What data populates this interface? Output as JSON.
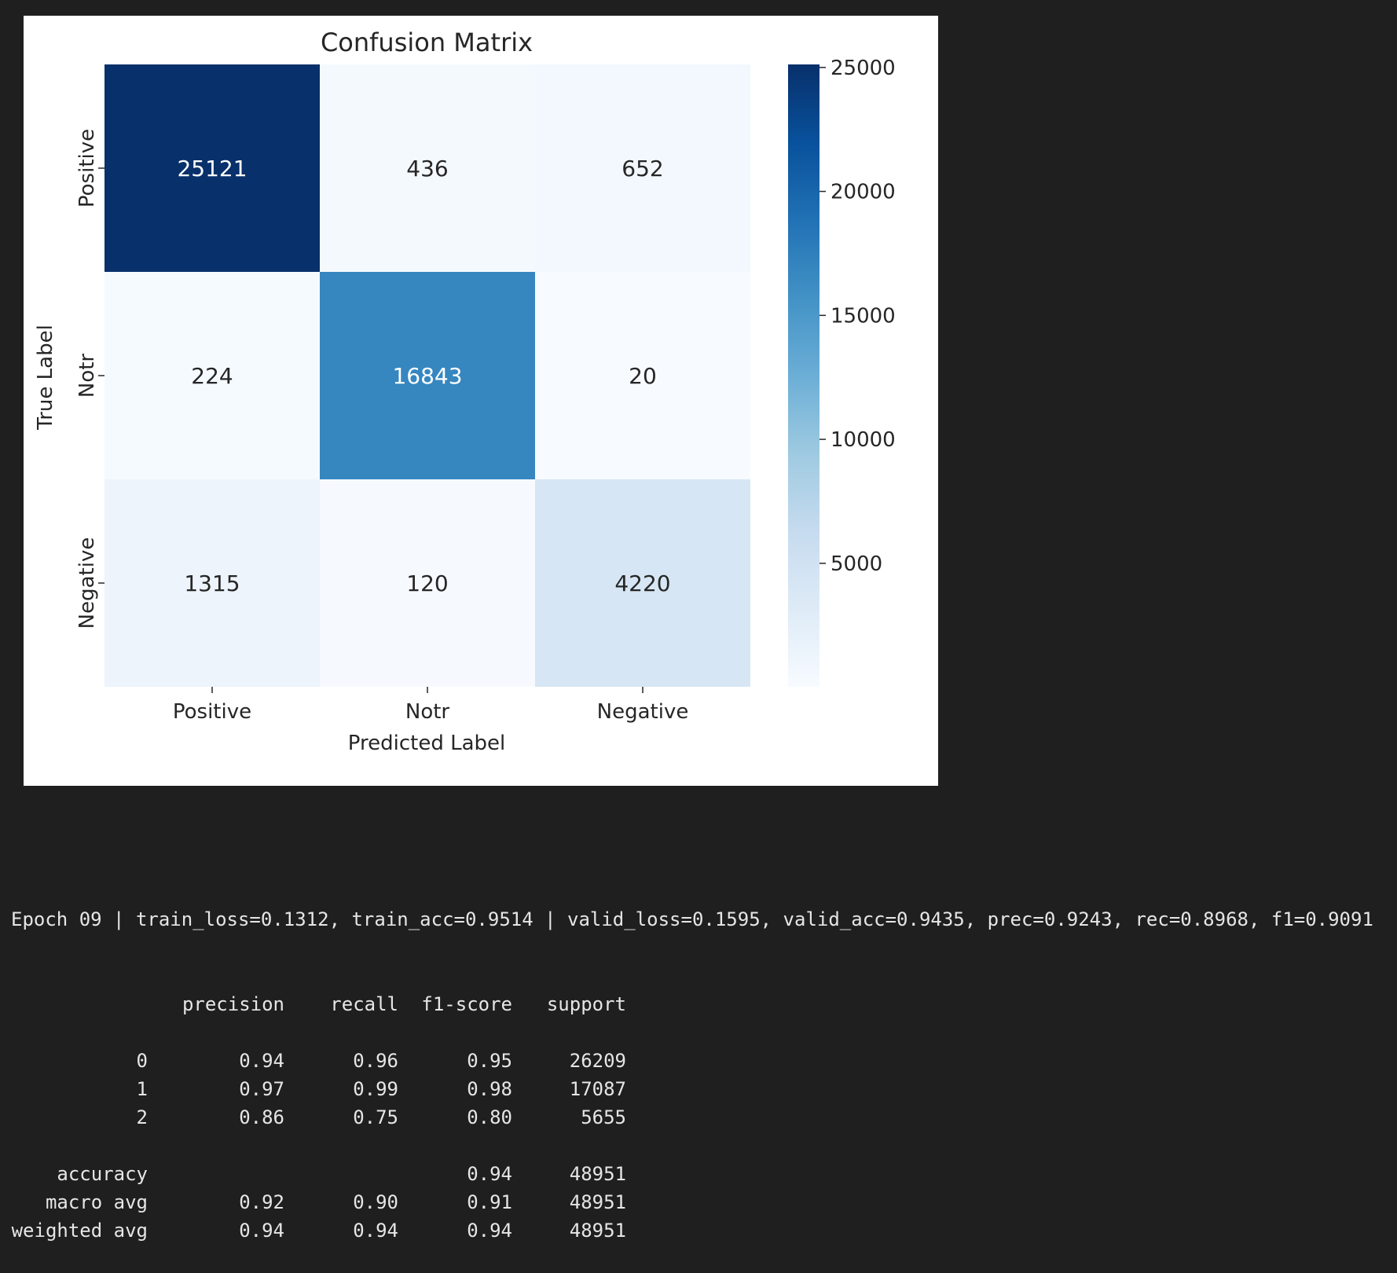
{
  "chart_data": {
    "type": "heatmap",
    "title": "Confusion Matrix",
    "xlabel": "Predicted Label",
    "ylabel": "True Label",
    "x_categories": [
      "Positive",
      "Notr",
      "Negative"
    ],
    "y_categories": [
      "Positive",
      "Notr",
      "Negative"
    ],
    "values": [
      [
        25121,
        436,
        652
      ],
      [
        224,
        16843,
        20
      ],
      [
        1315,
        120,
        4220
      ]
    ],
    "colorbar": {
      "colormap": "Blues",
      "range": [
        20,
        25121
      ],
      "ticks": [
        5000,
        10000,
        15000,
        20000,
        25000
      ],
      "tick_labels": [
        "5000",
        "10000",
        "15000",
        "20000",
        "25000"
      ]
    },
    "grid": false
  },
  "log": {
    "epoch_line": "Epoch 09 | train_loss=0.1312, train_acc=0.9514 | valid_loss=0.1595, valid_acc=0.9435, prec=0.9243, rec=0.8968, f1=0.9091",
    "report_header": [
      "",
      "precision",
      "recall",
      "f1-score",
      "support"
    ],
    "report_rows": [
      [
        "0",
        "0.94",
        "0.96",
        "0.95",
        "26209"
      ],
      [
        "1",
        "0.97",
        "0.99",
        "0.98",
        "17087"
      ],
      [
        "2",
        "0.86",
        "0.75",
        "0.80",
        "5655"
      ],
      null,
      [
        "accuracy",
        "",
        "",
        "0.94",
        "48951"
      ],
      [
        "macro avg",
        "0.92",
        "0.90",
        "0.91",
        "48951"
      ],
      [
        "weighted avg",
        "0.94",
        "0.94",
        "0.94",
        "48951"
      ]
    ]
  }
}
